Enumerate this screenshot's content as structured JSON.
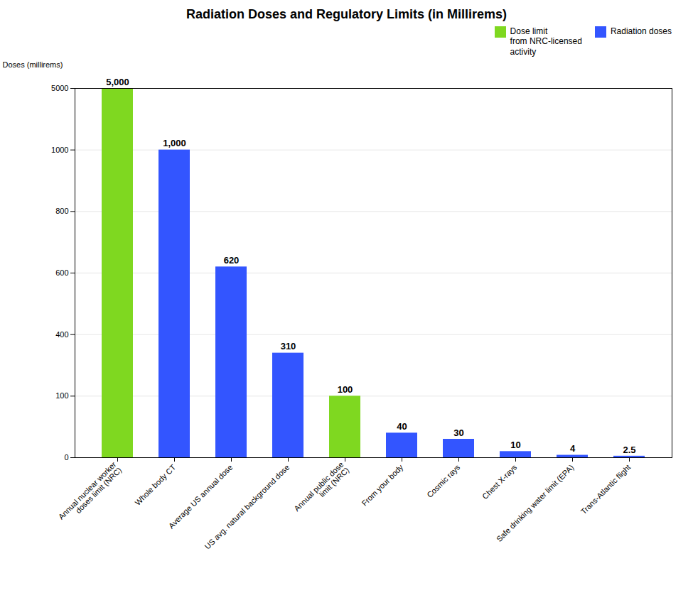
{
  "chart_data": {
    "type": "bar",
    "title": "Radiation Doses and Regulatory Limits (in Millirems)",
    "ylabel": "Doses (millirems)",
    "categories": [
      "Annual nuclear worker\ndoses limit (NRC)",
      "Whole body CT",
      "Average US annual dose",
      "US avg. natural background dose",
      "Annual public dose\nlimit (NRC)",
      "From your body",
      "Cosmic rays",
      "Chest X-rays",
      "Safe drinking water limit (EPA)",
      "Trans-Atlantic flight"
    ],
    "series": [
      {
        "name": "Dose limit\nfrom NRC-licensed\nactivity",
        "color": "#7FD820",
        "values": [
          5000,
          null,
          null,
          null,
          100,
          null,
          null,
          null,
          null,
          null
        ],
        "value_labels": [
          "5,000",
          null,
          null,
          null,
          "100",
          null,
          null,
          null,
          null,
          null
        ]
      },
      {
        "name": "Radiation doses",
        "color": "#3355FF",
        "values": [
          null,
          1000,
          620,
          310,
          null,
          40,
          30,
          10,
          4,
          2.5
        ],
        "value_labels": [
          null,
          "1,000",
          "620",
          "310",
          null,
          "40",
          "30",
          "10",
          "4",
          "2.5"
        ]
      }
    ],
    "ylim": [
      0,
      5000
    ],
    "yticks": [
      0,
      100,
      400,
      600,
      800,
      1000,
      5000
    ],
    "grid": true,
    "legend": "upper right",
    "data_labels": true
  }
}
